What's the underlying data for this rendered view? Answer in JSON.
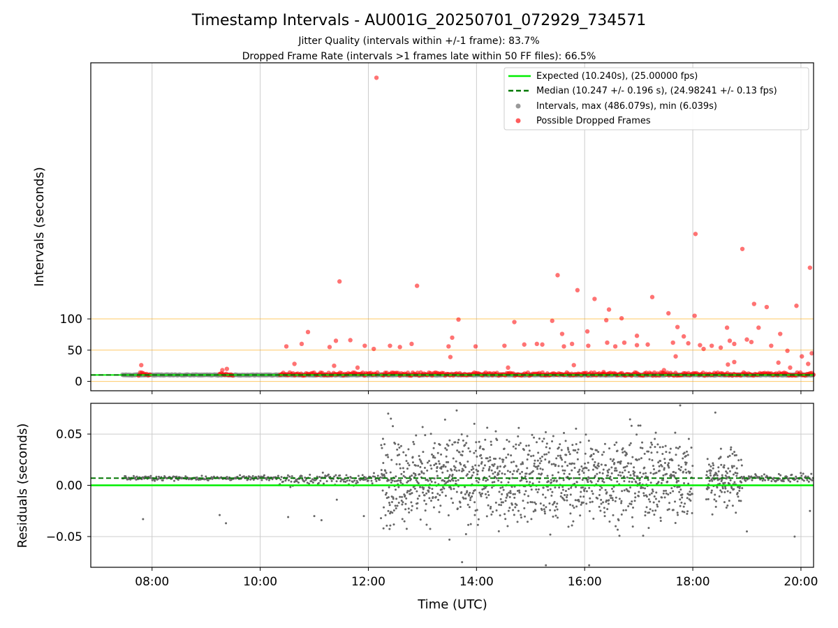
{
  "chart_data": [
    {
      "type": "scatter",
      "title": "Timestamp Intervals - AU001G_20250701_072929_734571",
      "subtitle_lines": [
        "Jitter Quality (intervals within +/-1 frame): 83.7%",
        "Dropped Frame Rate (intervals >1 frames late within 50 FF files): 66.5%"
      ],
      "xlabel": "",
      "ylabel": "Intervals (seconds)",
      "x_ticks": [
        "08:00",
        "10:00",
        "12:00",
        "14:00",
        "16:00",
        "18:00",
        "20:00"
      ],
      "y_ticks": [
        "0",
        "50",
        "100"
      ],
      "ylim": [
        -15,
        510
      ],
      "grid": "x only",
      "reference_lines": [
        {
          "y": 100,
          "color": "#ffa500"
        },
        {
          "y": 50,
          "color": "#ffa500"
        },
        {
          "y": 0,
          "color": "#ffa500"
        }
      ],
      "legend_position": "top-right",
      "legend": [
        {
          "label": "Expected (10.240s), (25.00000 fps)",
          "style": "solid-line",
          "color": "#00ee00"
        },
        {
          "label": "Median (10.247 +/- 0.196 s), (24.98241 +/- 0.13 fps)",
          "style": "dashed-line",
          "color": "#007700"
        },
        {
          "label": "Intervals, max (486.079s), min (6.039s)",
          "style": "dot",
          "color": "#999999"
        },
        {
          "label": "Possible Dropped Frames",
          "style": "dot",
          "color": "#ff3333"
        }
      ],
      "expected_value": 10.24,
      "median_value": 10.247,
      "series": [
        {
          "name": "Possible Dropped Frames",
          "color": "#ff0000",
          "points": [
            [
              "12:09",
              486.1
            ],
            [
              "18:03",
              236
            ],
            [
              "18:55",
              212
            ],
            [
              "20:10",
              182
            ],
            [
              "15:30",
              170
            ],
            [
              "11:28",
              160
            ],
            [
              "12:54",
              153
            ],
            [
              "15:52",
              146
            ],
            [
              "17:15",
              135
            ],
            [
              "16:11",
              132
            ],
            [
              "19:08",
              124
            ],
            [
              "19:22",
              119
            ],
            [
              "16:27",
              115
            ],
            [
              "19:55",
              121
            ],
            [
              "17:33",
              109
            ],
            [
              "18:02",
              105
            ],
            [
              "13:40",
              99
            ],
            [
              "14:42",
              95
            ],
            [
              "15:24",
              97
            ],
            [
              "16:24",
              98
            ],
            [
              "16:41",
              101
            ],
            [
              "17:43",
              87
            ],
            [
              "18:38",
              86
            ],
            [
              "19:13",
              86
            ],
            [
              "10:53",
              79
            ],
            [
              "17:50",
              72
            ],
            [
              "15:35",
              76
            ],
            [
              "16:03",
              80
            ],
            [
              "16:58",
              73
            ],
            [
              "19:37",
              76
            ],
            [
              "13:33",
              70
            ],
            [
              "17:10",
              59
            ],
            [
              "11:24",
              65
            ],
            [
              "12:48",
              60
            ],
            [
              "11:40",
              66
            ],
            [
              "11:56",
              57
            ],
            [
              "12:06",
              52
            ],
            [
              "10:29",
              56
            ],
            [
              "10:46",
              60
            ],
            [
              "11:17",
              55
            ],
            [
              "12:24",
              57
            ],
            [
              "12:35",
              55
            ],
            [
              "13:29",
              56
            ],
            [
              "13:59",
              56
            ],
            [
              "14:31",
              57
            ],
            [
              "14:53",
              59
            ],
            [
              "15:07",
              60
            ],
            [
              "15:13",
              59
            ],
            [
              "15:37",
              56
            ],
            [
              "15:46",
              60
            ],
            [
              "16:04",
              57
            ],
            [
              "16:25",
              62
            ],
            [
              "16:34",
              56
            ],
            [
              "16:44",
              62
            ],
            [
              "16:58",
              58
            ],
            [
              "17:38",
              62
            ],
            [
              "17:55",
              61
            ],
            [
              "18:08",
              58
            ],
            [
              "18:21",
              57
            ],
            [
              "18:31",
              54
            ],
            [
              "18:46",
              60
            ],
            [
              "19:00",
              67
            ],
            [
              "19:27",
              57
            ],
            [
              "19:45",
              49
            ],
            [
              "18:12",
              52
            ],
            [
              "18:41",
              65
            ],
            [
              "17:41",
              40
            ],
            [
              "19:05",
              63
            ],
            [
              "20:12",
              45
            ],
            [
              "07:48",
              26
            ],
            [
              "09:18",
              18
            ],
            [
              "09:23",
              20
            ],
            [
              "10:38",
              28
            ],
            [
              "11:22",
              25
            ],
            [
              "11:48",
              22
            ],
            [
              "13:31",
              39
            ],
            [
              "14:35",
              22
            ],
            [
              "15:48",
              26
            ],
            [
              "16:21",
              15
            ],
            [
              "17:28",
              18
            ],
            [
              "18:39",
              27
            ],
            [
              "18:46",
              31
            ],
            [
              "19:48",
              22
            ],
            [
              "20:08",
              28
            ],
            [
              "20:01",
              40
            ],
            [
              "19:35",
              30
            ]
          ]
        }
      ]
    },
    {
      "type": "scatter",
      "title": "",
      "xlabel": "Time (UTC)",
      "ylabel": "Residuals (seconds)",
      "x_ticks": [
        "08:00",
        "10:00",
        "12:00",
        "14:00",
        "16:00",
        "18:00",
        "20:00"
      ],
      "y_ticks": [
        "0.05",
        "0.00",
        "−0.05"
      ],
      "ylim": [
        -0.08,
        0.08
      ],
      "xlim": [
        "06:52",
        "20:14"
      ],
      "grid": "both",
      "expected_value": 0.0,
      "median_value": 0.007,
      "series": [
        {
          "name": "Intervals",
          "color": "#666666",
          "segments": [
            {
              "start": "07:27",
              "end": "10:20",
              "center": 0.007,
              "spread": 0.0015
            },
            {
              "start": "10:20",
              "end": "12:14",
              "center": 0.006,
              "spread": 0.004
            },
            {
              "start": "12:14",
              "end": "18:00",
              "center": 0.007,
              "spread": 0.03
            },
            {
              "start": "18:15",
              "end": "18:55",
              "center": 0.006,
              "spread": 0.02
            },
            {
              "start": "18:55",
              "end": "20:14",
              "center": 0.007,
              "spread": 0.003
            }
          ],
          "outliers": [
            [
              "07:50",
              -0.033
            ],
            [
              "09:15",
              -0.029
            ],
            [
              "09:22",
              -0.037
            ],
            [
              "10:31",
              -0.031
            ],
            [
              "11:00",
              -0.03
            ],
            [
              "11:08",
              -0.034
            ],
            [
              "11:25",
              -0.014
            ],
            [
              "11:55",
              -0.03
            ],
            [
              "12:22",
              0.07
            ],
            [
              "12:25",
              0.065
            ],
            [
              "13:30",
              -0.053
            ],
            [
              "13:38",
              0.073
            ],
            [
              "13:44",
              -0.075
            ],
            [
              "15:17",
              -0.078
            ],
            [
              "16:05",
              -0.078
            ],
            [
              "17:46",
              0.078
            ],
            [
              "18:25",
              0.071
            ],
            [
              "19:00",
              -0.045
            ],
            [
              "19:53",
              -0.05
            ],
            [
              "20:10",
              -0.025
            ]
          ]
        }
      ]
    }
  ]
}
